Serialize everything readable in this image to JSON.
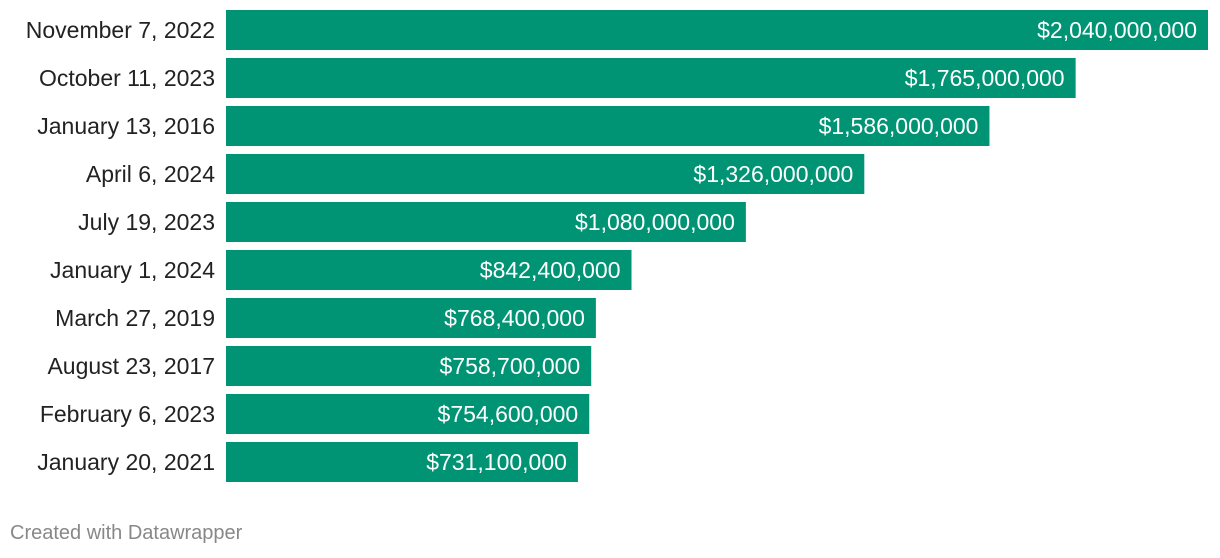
{
  "chart_data": {
    "type": "bar",
    "orientation": "horizontal",
    "categories": [
      "November 7, 2022",
      "October 11, 2023",
      "January 13, 2016",
      "April 6, 2024",
      "July 19, 2023",
      "January 1, 2024",
      "March 27, 2019",
      "August 23, 2017",
      "February 6, 2023",
      "January 20, 2021"
    ],
    "values": [
      2040000000,
      1765000000,
      1586000000,
      1326000000,
      1080000000,
      842400000,
      768400000,
      758700000,
      754600000,
      731100000
    ],
    "value_labels": [
      "$2,040,000,000",
      "$1,765,000,000",
      "$1,586,000,000",
      "$1,326,000,000",
      "$1,080,000,000",
      "$842,400,000",
      "$768,400,000",
      "$758,700,000",
      "$754,600,000",
      "$731,100,000"
    ],
    "xlim": [
      0,
      2040000000
    ],
    "grid": false,
    "bar_color": "#009475"
  },
  "footer": {
    "credit": "Created with Datawrapper"
  }
}
